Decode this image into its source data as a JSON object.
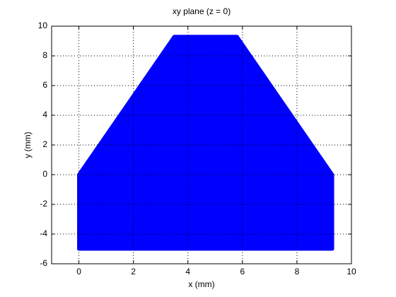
{
  "chart_data": {
    "type": "polygon",
    "title": "xy plane (z = 0)",
    "xlabel": "x (mm)",
    "ylabel": "y (mm)",
    "x": [
      0,
      0,
      3.5,
      5.8,
      9.3,
      9.3
    ],
    "y": [
      -5,
      0,
      9.3,
      9.3,
      0,
      -5
    ],
    "color": "#0000ff",
    "xlim": [
      -1,
      10
    ],
    "ylim": [
      -6,
      10
    ],
    "xticks": [
      0,
      2,
      4,
      6,
      8,
      10
    ],
    "yticks": [
      -6,
      -4,
      -2,
      0,
      2,
      4,
      6,
      8,
      10
    ],
    "grid": true
  }
}
